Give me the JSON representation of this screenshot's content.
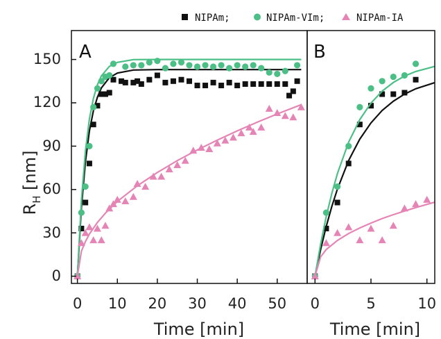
{
  "legend": {
    "items": [
      {
        "label": "NIPAm;",
        "marker": "square",
        "color": "#111111"
      },
      {
        "label": "NIPAm-VIm;",
        "marker": "circle",
        "color": "#4bbf85"
      },
      {
        "label": "NIPAm-IA",
        "marker": "triangle",
        "color": "#e585b5"
      }
    ]
  },
  "y_axis": {
    "label_main": "R",
    "label_sub": "H",
    "label_unit": " [nm]",
    "ticks": [
      "0",
      "30",
      "60",
      "90",
      "120",
      "150"
    ]
  },
  "chart_data": [
    {
      "panel": "A",
      "type": "scatter",
      "xlabel": "Time [min]",
      "ylabel": "R_H [nm]",
      "xlim": [
        -1.5,
        57.5
      ],
      "ylim": [
        -5,
        170
      ],
      "x_ticks": [
        0,
        10,
        20,
        30,
        40,
        50
      ],
      "y_ticks": [
        0,
        30,
        60,
        90,
        120,
        150
      ],
      "series": [
        {
          "name": "NIPAm",
          "marker": "square",
          "color": "#111111",
          "points": [
            [
              0,
              0
            ],
            [
              1,
              33
            ],
            [
              2,
              51
            ],
            [
              3,
              78
            ],
            [
              4,
              105
            ],
            [
              5,
              118
            ],
            [
              6,
              126
            ],
            [
              7,
              126
            ],
            [
              8,
              127
            ],
            [
              9,
              136
            ],
            [
              11,
              135
            ],
            [
              12,
              134
            ],
            [
              14,
              134
            ],
            [
              15,
              135
            ],
            [
              16,
              133
            ],
            [
              18,
              136
            ],
            [
              20,
              139
            ],
            [
              22,
              134
            ],
            [
              24,
              135
            ],
            [
              26,
              136
            ],
            [
              28,
              135
            ],
            [
              30,
              132
            ],
            [
              32,
              132
            ],
            [
              34,
              134
            ],
            [
              36,
              132
            ],
            [
              38,
              134
            ],
            [
              40,
              132
            ],
            [
              42,
              133
            ],
            [
              44,
              133
            ],
            [
              46,
              133
            ],
            [
              48,
              133
            ],
            [
              50,
              133
            ],
            [
              52,
              133
            ],
            [
              53,
              125
            ],
            [
              54,
              128
            ],
            [
              55,
              135
            ]
          ],
          "fit": [
            [
              0,
              0
            ],
            [
              1,
              47.5
            ],
            [
              2,
              79.2
            ],
            [
              3,
              100.4
            ],
            [
              4,
              114.5
            ],
            [
              5,
              123.9
            ],
            [
              6,
              130.3
            ],
            [
              8,
              137.4
            ],
            [
              10,
              140.6
            ],
            [
              14,
              142.7
            ],
            [
              20,
              143.0
            ],
            [
              30,
              143.0
            ],
            [
              56,
              143.0
            ]
          ]
        },
        {
          "name": "NIPAm-VIm",
          "marker": "circle",
          "color": "#4bbf85",
          "points": [
            [
              0,
              0
            ],
            [
              1,
              44
            ],
            [
              2,
              62
            ],
            [
              3,
              90
            ],
            [
              4,
              117
            ],
            [
              5,
              130
            ],
            [
              6,
              135
            ],
            [
              7,
              138
            ],
            [
              8,
              139
            ],
            [
              9,
              147
            ],
            [
              12,
              145
            ],
            [
              14,
              146
            ],
            [
              16,
              146
            ],
            [
              18,
              148
            ],
            [
              20,
              149
            ],
            [
              22,
              144
            ],
            [
              24,
              147
            ],
            [
              26,
              148
            ],
            [
              28,
              146
            ],
            [
              30,
              145
            ],
            [
              32,
              146
            ],
            [
              34,
              145
            ],
            [
              36,
              146
            ],
            [
              38,
              144
            ],
            [
              40,
              146
            ],
            [
              42,
              145
            ],
            [
              44,
              146
            ],
            [
              46,
              144
            ],
            [
              48,
              141
            ],
            [
              50,
              140
            ],
            [
              52,
              142
            ],
            [
              55,
              146
            ]
          ],
          "fit": [
            [
              0,
              0
            ],
            [
              1,
              52.5
            ],
            [
              2,
              86.6
            ],
            [
              3,
              108.7
            ],
            [
              4,
              123.1
            ],
            [
              5,
              132.5
            ],
            [
              6,
              138.6
            ],
            [
              8,
              145.2
            ],
            [
              10,
              148.0
            ],
            [
              14,
              149.9
            ],
            [
              20,
              150.0
            ],
            [
              30,
              150.0
            ],
            [
              56,
              150.0
            ]
          ]
        },
        {
          "name": "NIPAm-IA",
          "marker": "triangle",
          "color": "#e585b5",
          "points": [
            [
              0,
              0
            ],
            [
              1,
              23
            ],
            [
              2,
              30
            ],
            [
              3,
              34
            ],
            [
              4,
              25
            ],
            [
              5,
              33
            ],
            [
              6,
              25
            ],
            [
              7,
              35
            ],
            [
              8,
              47
            ],
            [
              9,
              50
            ],
            [
              10,
              53
            ],
            [
              12,
              52
            ],
            [
              14,
              55
            ],
            [
              15,
              64
            ],
            [
              17,
              62
            ],
            [
              19,
              69
            ],
            [
              21,
              69
            ],
            [
              23,
              74
            ],
            [
              25,
              77
            ],
            [
              27,
              80
            ],
            [
              29,
              87
            ],
            [
              31,
              89
            ],
            [
              33,
              88
            ],
            [
              35,
              92
            ],
            [
              37,
              94
            ],
            [
              39,
              96
            ],
            [
              41,
              99
            ],
            [
              43,
              103
            ],
            [
              44,
              100
            ],
            [
              46,
              103
            ],
            [
              48,
              116
            ],
            [
              50,
              113
            ],
            [
              52,
              111
            ],
            [
              54,
              110
            ],
            [
              56,
              117
            ]
          ],
          "fit": [
            [
              0,
              0
            ],
            [
              1,
              17.3
            ],
            [
              2,
              24.0
            ],
            [
              3,
              29.2
            ],
            [
              5,
              37.2
            ],
            [
              7,
              43.6
            ],
            [
              10,
              51.8
            ],
            [
              15,
              62.6
            ],
            [
              20,
              71.8
            ],
            [
              25,
              80.0
            ],
            [
              30,
              87.4
            ],
            [
              35,
              94.2
            ],
            [
              40,
              100.6
            ],
            [
              45,
              106.6
            ],
            [
              50,
              112.3
            ],
            [
              56,
              118.7
            ]
          ]
        }
      ]
    },
    {
      "panel": "B",
      "type": "scatter",
      "xlabel": "Time [min]",
      "ylabel": "R_H [nm]",
      "xlim": [
        -0.7,
        10.7
      ],
      "ylim": [
        -5,
        170
      ],
      "x_ticks": [
        0,
        5,
        10
      ],
      "y_ticks": [
        0,
        30,
        60,
        90,
        120,
        150
      ],
      "series": [
        {
          "name": "NIPAm",
          "marker": "square",
          "color": "#111111",
          "points": [
            [
              0,
              0
            ],
            [
              1,
              33
            ],
            [
              2,
              51
            ],
            [
              3,
              78
            ],
            [
              4,
              105
            ],
            [
              5,
              118
            ],
            [
              6,
              126
            ],
            [
              7,
              126
            ],
            [
              8,
              127
            ],
            [
              9,
              136
            ]
          ],
          "fit": [
            [
              0,
              0
            ],
            [
              0.5,
              18.4
            ],
            [
              1,
              34.3
            ],
            [
              1.5,
              48.2
            ],
            [
              2,
              60.3
            ],
            [
              3,
              80.0
            ],
            [
              4,
              94.9
            ],
            [
              5,
              106.1
            ],
            [
              6,
              114.7
            ],
            [
              7,
              121.1
            ],
            [
              8,
              126.0
            ],
            [
              9,
              129.7
            ],
            [
              10.7,
              134.0
            ]
          ]
        },
        {
          "name": "NIPAm-VIm",
          "marker": "circle",
          "color": "#4bbf85",
          "points": [
            [
              0,
              0
            ],
            [
              1,
              44
            ],
            [
              2,
              62
            ],
            [
              3,
              90
            ],
            [
              4,
              117
            ],
            [
              5,
              130
            ],
            [
              6,
              135
            ],
            [
              7,
              138
            ],
            [
              8,
              139
            ],
            [
              9,
              147
            ]
          ],
          "fit": [
            [
              0,
              0
            ],
            [
              0.5,
              22.2
            ],
            [
              1,
              41.1
            ],
            [
              1.5,
              57.2
            ],
            [
              2,
              71.0
            ],
            [
              3,
              92.7
            ],
            [
              4,
              108.4
            ],
            [
              5,
              119.8
            ],
            [
              6,
              128.1
            ],
            [
              7,
              134.1
            ],
            [
              8,
              138.5
            ],
            [
              9,
              141.7
            ],
            [
              10.7,
              145.2
            ]
          ]
        },
        {
          "name": "NIPAm-IA",
          "marker": "triangle",
          "color": "#e585b5",
          "points": [
            [
              0,
              0
            ],
            [
              1,
              23
            ],
            [
              2,
              30
            ],
            [
              3,
              34
            ],
            [
              4,
              25
            ],
            [
              5,
              33
            ],
            [
              6,
              25
            ],
            [
              7,
              35
            ],
            [
              8,
              47
            ],
            [
              9,
              50
            ],
            [
              10,
              53
            ]
          ],
          "fit": [
            [
              0,
              0
            ],
            [
              0.5,
              13.4
            ],
            [
              1,
              18.4
            ],
            [
              2,
              24.7
            ],
            [
              3,
              29.5
            ],
            [
              4,
              33.4
            ],
            [
              5,
              36.8
            ],
            [
              6,
              39.9
            ],
            [
              7,
              42.6
            ],
            [
              8,
              45.1
            ],
            [
              9,
              47.5
            ],
            [
              10,
              49.7
            ],
            [
              10.7,
              51.2
            ]
          ]
        }
      ]
    }
  ]
}
